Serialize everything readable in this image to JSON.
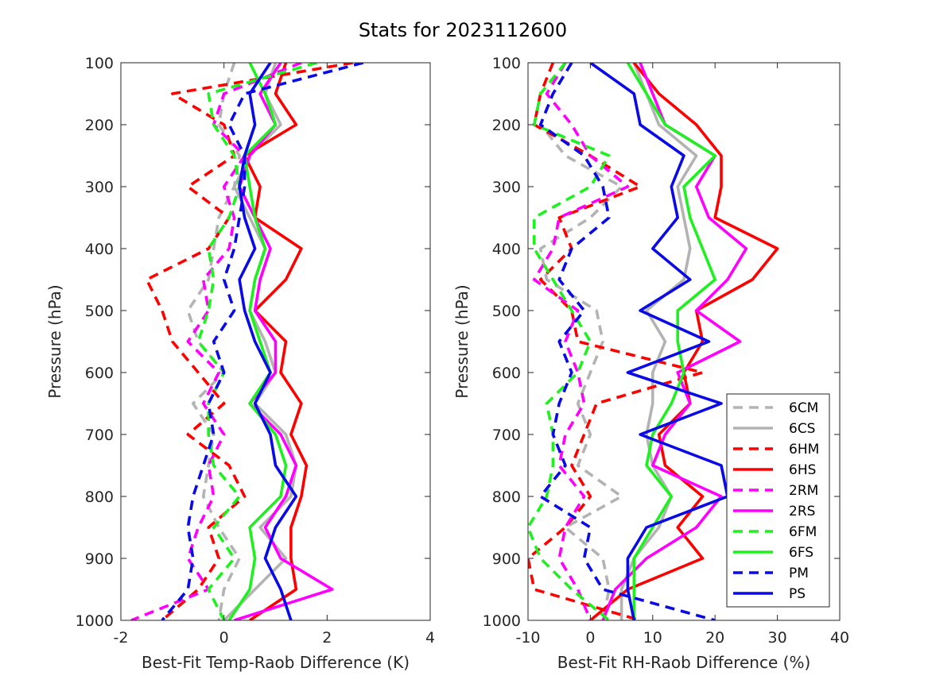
{
  "title": "Stats for 2023112600",
  "colors": {
    "6C": "#b3b3b3",
    "6H": "#ff0000",
    "2R": "#ff00ff",
    "6F": "#1ff01f",
    "P": "#0a0ae6",
    "axis": "#262626"
  },
  "legend": {
    "placement": "lower-right of right panel",
    "entries": [
      {
        "label": "6CM",
        "color_key": "6C",
        "dashed": true
      },
      {
        "label": "6CS",
        "color_key": "6C",
        "dashed": false
      },
      {
        "label": "6HM",
        "color_key": "6H",
        "dashed": true
      },
      {
        "label": "6HS",
        "color_key": "6H",
        "dashed": false
      },
      {
        "label": "2RM",
        "color_key": "2R",
        "dashed": true
      },
      {
        "label": "2RS",
        "color_key": "2R",
        "dashed": false
      },
      {
        "label": "6FM",
        "color_key": "6F",
        "dashed": true
      },
      {
        "label": "6FS",
        "color_key": "6F",
        "dashed": false
      },
      {
        "label": "PM",
        "color_key": "P",
        "dashed": true
      },
      {
        "label": "PS",
        "color_key": "P",
        "dashed": false
      }
    ]
  },
  "chart_data": [
    {
      "type": "line",
      "xlabel": "Best-Fit Temp-Raob Difference (K)",
      "ylabel": "Pressure (hPa)",
      "xlim": [
        -2,
        4
      ],
      "ylim": [
        100,
        1000
      ],
      "y_reversed": true,
      "xticks": [
        "-2",
        "0",
        "2",
        "4"
      ],
      "yticks": [
        "100",
        "200",
        "300",
        "400",
        "500",
        "600",
        "700",
        "800",
        "900",
        "1000"
      ],
      "pressure_levels": [
        100,
        150,
        200,
        250,
        300,
        350,
        400,
        450,
        500,
        550,
        600,
        650,
        700,
        750,
        800,
        850,
        900,
        950,
        1000
      ],
      "series": [
        {
          "name": "6CM",
          "color_key": "6C",
          "dashed": true,
          "x": [
            0.2,
            0.0,
            -0.1,
            0.3,
            0.2,
            -0.1,
            -0.2,
            -0.3,
            -0.7,
            -0.5,
            0.0,
            -0.6,
            -0.2,
            -0.3,
            -0.4,
            -0.1,
            0.3,
            0.0,
            -0.1
          ]
        },
        {
          "name": "6CS",
          "color_key": "6C",
          "dashed": false,
          "x": [
            1.0,
            0.8,
            1.1,
            0.5,
            0.2,
            0.5,
            0.8,
            0.6,
            0.5,
            0.8,
            1.0,
            0.6,
            1.2,
            1.4,
            1.3,
            0.7,
            1.2,
            0.6,
            0.0
          ]
        },
        {
          "name": "6HM",
          "color_key": "6H",
          "dashed": true,
          "x": [
            2.5,
            -1.0,
            0.0,
            0.2,
            -0.7,
            0.1,
            -0.3,
            -1.5,
            -1.2,
            -1.0,
            -0.5,
            0.0,
            -0.7,
            0.1,
            0.4,
            -0.3,
            -0.1,
            -0.5,
            -1.2
          ]
        },
        {
          "name": "6HS",
          "color_key": "6H",
          "dashed": false,
          "x": [
            1.2,
            1.0,
            1.4,
            0.4,
            0.7,
            0.6,
            1.5,
            1.2,
            0.6,
            1.2,
            1.1,
            1.5,
            1.3,
            1.6,
            1.5,
            1.3,
            1.3,
            1.4,
            0.5
          ]
        },
        {
          "name": "2RM",
          "color_key": "2R",
          "dashed": true,
          "x": [
            1.5,
            0.0,
            -0.2,
            0.4,
            0.0,
            0.2,
            0.1,
            -0.4,
            -0.3,
            -0.7,
            -0.1,
            -0.4,
            0.0,
            -0.3,
            -0.2,
            -0.5,
            -0.7,
            -0.3,
            -1.8
          ]
        },
        {
          "name": "2RS",
          "color_key": "2R",
          "dashed": false,
          "x": [
            1.1,
            0.7,
            1.0,
            0.5,
            0.3,
            0.6,
            0.9,
            0.7,
            0.6,
            1.0,
            1.0,
            0.5,
            1.1,
            1.4,
            1.2,
            0.8,
            1.1,
            2.1,
            0.2
          ]
        },
        {
          "name": "6FM",
          "color_key": "6F",
          "dashed": true,
          "x": [
            1.8,
            -0.3,
            -0.2,
            0.2,
            0.3,
            0.1,
            -0.3,
            -0.2,
            -0.3,
            -0.5,
            0.0,
            -0.3,
            -0.3,
            -0.2,
            0.3,
            -0.2,
            0.2,
            -0.3,
            0.0
          ]
        },
        {
          "name": "6FS",
          "color_key": "6F",
          "dashed": false,
          "x": [
            0.5,
            0.8,
            1.0,
            0.4,
            0.5,
            0.6,
            0.8,
            0.6,
            0.5,
            0.7,
            0.9,
            0.5,
            1.0,
            1.2,
            1.1,
            0.5,
            0.6,
            0.5,
            0.1
          ]
        },
        {
          "name": "PM",
          "color_key": "P",
          "dashed": true,
          "x": [
            2.7,
            0.4,
            0.1,
            0.4,
            0.4,
            0.3,
            0.2,
            0.0,
            0.2,
            -0.2,
            0.0,
            -0.3,
            -0.2,
            -0.4,
            -0.6,
            -0.7,
            -0.6,
            -0.7,
            -1.2
          ]
        },
        {
          "name": "PS",
          "color_key": "P",
          "dashed": false,
          "x": [
            0.9,
            0.5,
            0.6,
            0.4,
            0.3,
            0.4,
            0.6,
            0.3,
            0.4,
            0.6,
            0.9,
            0.6,
            0.9,
            1.0,
            1.4,
            1.0,
            0.8,
            1.1,
            1.3
          ]
        }
      ]
    },
    {
      "type": "line",
      "xlabel": "Best-Fit RH-Raob Difference (%)",
      "ylabel": "Pressure (hPa)",
      "xlim": [
        -10,
        40
      ],
      "ylim": [
        100,
        1000
      ],
      "y_reversed": true,
      "xticks": [
        "-10",
        "0",
        "10",
        "20",
        "30",
        "40"
      ],
      "yticks": [
        "100",
        "200",
        "300",
        "400",
        "500",
        "600",
        "700",
        "800",
        "900",
        "1000"
      ],
      "pressure_levels": [
        100,
        150,
        200,
        250,
        300,
        350,
        400,
        450,
        500,
        550,
        600,
        650,
        700,
        750,
        800,
        850,
        900,
        950,
        1000
      ],
      "series": [
        {
          "name": "6CM",
          "color_key": "6C",
          "dashed": true,
          "x": [
            -3,
            -6,
            -8,
            -4,
            5,
            0,
            -8,
            -7,
            1,
            2,
            0,
            -2,
            0,
            -2,
            5,
            -4,
            2,
            3,
            2
          ]
        },
        {
          "name": "6CS",
          "color_key": "6C",
          "dashed": false,
          "x": [
            7,
            9,
            11,
            17,
            14,
            15,
            16,
            15,
            9,
            12,
            10,
            10,
            9,
            10,
            13,
            11,
            7,
            5,
            5
          ]
        },
        {
          "name": "6HM",
          "color_key": "6H",
          "dashed": true,
          "x": [
            -6,
            -8,
            -9,
            0,
            8,
            -5,
            -3,
            -8,
            -3,
            -2,
            18,
            1,
            -1,
            -3,
            0,
            -4,
            -10,
            -9,
            8
          ]
        },
        {
          "name": "6HS",
          "color_key": "6H",
          "dashed": false,
          "x": [
            7,
            11,
            17,
            21,
            21,
            20,
            30,
            26,
            17,
            18,
            15,
            16,
            11,
            12,
            18,
            14,
            18,
            6,
            0
          ]
        },
        {
          "name": "2RM",
          "color_key": "2R",
          "dashed": true,
          "x": [
            -4,
            -7,
            -3,
            0,
            6,
            -5,
            -6,
            -9,
            -2,
            -4,
            -2,
            -1,
            -4,
            -5,
            -1,
            -4,
            -5,
            -2,
            0
          ]
        },
        {
          "name": "2RS",
          "color_key": "2R",
          "dashed": false,
          "x": [
            8,
            10,
            12,
            20,
            17,
            19,
            25,
            22,
            17,
            24,
            14,
            16,
            12,
            10,
            21,
            17,
            9,
            4,
            2
          ]
        },
        {
          "name": "6FM",
          "color_key": "6F",
          "dashed": true,
          "x": [
            -4,
            -8,
            -9,
            3,
            0,
            -9,
            -9,
            -6,
            -3,
            0,
            -2,
            -7,
            -6,
            -6,
            -7,
            -10,
            -8,
            -3,
            3
          ]
        },
        {
          "name": "6FS",
          "color_key": "6F",
          "dashed": false,
          "x": [
            6,
            9,
            12,
            20,
            15,
            16,
            18,
            20,
            14,
            14,
            15,
            13,
            10,
            9,
            13,
            10,
            7,
            7,
            7
          ]
        },
        {
          "name": "PM",
          "color_key": "P",
          "dashed": true,
          "x": [
            -3,
            -6,
            -8,
            -1,
            2,
            3,
            -3,
            -5,
            -1,
            -5,
            -3,
            -5,
            -6,
            -4,
            -8,
            0,
            -1,
            2,
            20
          ]
        },
        {
          "name": "PS",
          "color_key": "P",
          "dashed": false,
          "x": [
            0,
            7,
            8,
            15,
            13,
            14,
            10,
            16,
            8,
            19,
            6,
            21,
            8,
            21,
            22,
            9,
            6,
            6,
            7
          ]
        }
      ]
    }
  ]
}
